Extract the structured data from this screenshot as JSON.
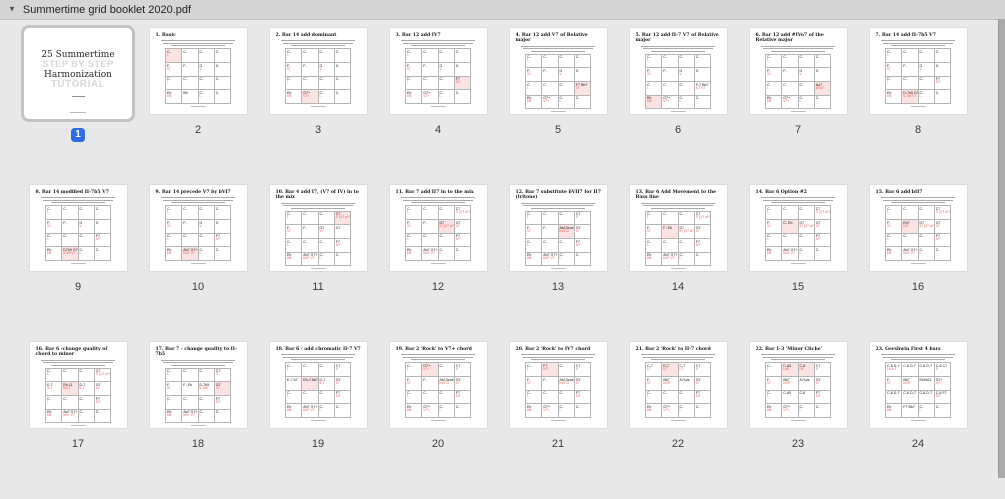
{
  "header": {
    "disclosure_icon": "▼",
    "filename": "Summertime grid booklet 2020.pdf"
  },
  "colors": {
    "selected_badge_blue": "#2f6ce6",
    "annotation_red": "#e2574e",
    "highlight_pink": "#fbe3e3",
    "page_white": "#ffffff",
    "canvas_gray": "#e8e8e8",
    "titlebar_gray": "#d5d5d5"
  },
  "cover": {
    "line1": "25 Summertime",
    "line2": "STEP BY STEP",
    "line3": "Harmonization",
    "line4": "TUTORIAL"
  },
  "base_grid": [
    [
      "C-",
      "I-"
    ],
    [
      "C-",
      ""
    ],
    [
      "C-",
      ""
    ],
    [
      "C-",
      ""
    ],
    [
      "F-",
      "IV-"
    ],
    [
      "F-",
      ""
    ],
    [
      "G",
      "V"
    ],
    [
      "G",
      ""
    ],
    [
      "C-",
      "I-"
    ],
    [
      "C-",
      ""
    ],
    [
      "C-",
      ""
    ],
    [
      "C-",
      ""
    ],
    [
      "Eb",
      "bIII"
    ],
    [
      "Bb",
      ""
    ],
    [
      "C-",
      "I-"
    ],
    [
      "C-",
      ""
    ]
  ],
  "pages": [
    {
      "num": "1",
      "selected": true,
      "type": "cover"
    },
    {
      "num": "2",
      "title": "1. Basic",
      "ov": {},
      "hl": [
        0
      ]
    },
    {
      "num": "3",
      "title": "2. Bar 14 add dominant",
      "ov": {
        "13": [
          "G7+",
          "V7+"
        ]
      },
      "hl": [
        13
      ]
    },
    {
      "num": "4",
      "title": "3. Bar 12 add IV7",
      "ov": {
        "11": [
          "F7",
          "IV7"
        ],
        "13": [
          "G7+",
          "V7+"
        ]
      },
      "hl": [
        11
      ]
    },
    {
      "num": "5",
      "title": "4. Bar 12 add V7 of Relative major",
      "ov": {
        "11": [
          "F7 Bb7",
          "V7"
        ],
        "13": [
          "G7+",
          "V7+"
        ]
      },
      "hl": [
        11
      ]
    },
    {
      "num": "6",
      "title": "5. Bar 12 add II-7 V7 of Relative major",
      "ov": {
        "11": [
          "F-7 Bb7",
          "II-7 V7"
        ],
        "13": [
          "G7+",
          "V7+"
        ]
      },
      "hl": [
        12
      ]
    },
    {
      "num": "7",
      "title": "6. Bar 12 add #IVo7 of the Relative major",
      "ov": {
        "11": [
          "Ao7",
          "#IVo7"
        ],
        "13": [
          "G7+",
          "V7+"
        ]
      },
      "hl": [
        11
      ]
    },
    {
      "num": "8",
      "title": "7. Bar 14 add II-7b5 V7",
      "ov": {
        "11": [
          "F7",
          "IV7"
        ],
        "13": [
          "D-7b5 G7+",
          "II-7b5 V7"
        ]
      },
      "hl": [
        13
      ]
    },
    {
      "num": "9",
      "title": "8. Bar 14 modified  II-7b5 V7",
      "ov": {
        "11": [
          "F7",
          "IV7"
        ],
        "13": [
          "D7b9 G7+",
          "II7b9 V7"
        ]
      },
      "hl": [
        13
      ]
    },
    {
      "num": "10",
      "title": "9. Bar 14 precede V7 by bVI7",
      "ov": {
        "11": [
          "F7",
          "IV7"
        ],
        "13": [
          "Ab7 G7+",
          "bVI7 V7"
        ]
      },
      "hl": [
        13
      ]
    },
    {
      "num": "11",
      "title": "10. Bar 4 add I7, (V7 of IV) in to the mix",
      "ov": {
        "3": [
          "C7",
          "I7 (V7 of IV)"
        ],
        "6": [
          "G7",
          "V7"
        ],
        "7": [
          "G7",
          ""
        ],
        "11": [
          "F7",
          "IV7"
        ],
        "13": [
          "Ab7 G7+",
          "bVI7 V7"
        ]
      },
      "hl": [
        3
      ]
    },
    {
      "num": "12",
      "title": "11. Bar 7 add II7 in to the mix",
      "ov": {
        "3": [
          "C7",
          "I7 (V7 of IV)"
        ],
        "6": [
          "D7",
          "II7 (V7 of V)"
        ],
        "7": [
          "G7",
          "V7"
        ],
        "11": [
          "F7",
          "IV7"
        ],
        "13": [
          "Ab7 G7+",
          "bVI7 V7"
        ]
      },
      "hl": [
        6
      ]
    },
    {
      "num": "13",
      "title": "12. Bar 7 substitute bVII7 for II7 (tritone)",
      "ov": {
        "3": [
          "C7",
          "I7"
        ],
        "6": [
          "Ab13sus",
          "bVII13"
        ],
        "7": [
          "G7",
          "V7"
        ],
        "11": [
          "F7",
          "IV7"
        ],
        "13": [
          "Ab7 G7+",
          "bVI7 V7"
        ]
      },
      "hl": [
        6
      ]
    },
    {
      "num": "14",
      "title": "13. Bar 6  Add Movement to the Bass line",
      "ov": {
        "3": [
          "C7",
          "I7 (V7 of IV)"
        ],
        "5": [
          "F- Eb",
          ""
        ],
        "6": [
          "D7",
          "II7 (V7 of V)"
        ],
        "7": [
          "G7",
          "V7"
        ],
        "11": [
          "F7",
          "IV7"
        ],
        "13": [
          "Ab7 G7+",
          "bVI7 V7"
        ]
      },
      "hl": [
        5
      ]
    },
    {
      "num": "15",
      "title": "14. Bar 6  Option #2",
      "ov": {
        "3": [
          "C7",
          "I7 (V7 of IV)"
        ],
        "5": [
          "C- Eb",
          ""
        ],
        "6": [
          "D7",
          "II7 (V7 of V)"
        ],
        "7": [
          "G7",
          "V7"
        ],
        "11": [
          "F7",
          "IV7"
        ],
        "13": [
          "Ab7 G7+",
          "bVI7 V7"
        ]
      },
      "hl": [
        5
      ]
    },
    {
      "num": "16",
      "title": "15. Bar 6  add bII7",
      "ov": {
        "3": [
          "C7",
          "I7 (V7 of IV)"
        ],
        "5": [
          "Eb7",
          "bII7"
        ],
        "6": [
          "D7",
          "II7 (V7 of V)"
        ],
        "7": [
          "G7",
          "V7"
        ],
        "11": [
          "F7",
          "IV7"
        ],
        "13": [
          "Ab7 G7+",
          "bVI7 V7"
        ]
      },
      "hl": [
        5
      ]
    },
    {
      "num": "17",
      "title": "16. Bar 6 -change quality of chord to minor",
      "ov": {
        "3": [
          "C7",
          "I7 (V7 of IV)"
        ],
        "4": [
          "E-7",
          "III-7"
        ],
        "5": [
          "Eb-11",
          "bIII-7"
        ],
        "6": [
          "D-7",
          "II-7"
        ],
        "7": [
          "G7",
          "V7"
        ],
        "11": [
          "F7",
          "IV7"
        ],
        "13": [
          "Ab7 G7+",
          "bVI7 V7"
        ]
      },
      "hl": [
        5
      ]
    },
    {
      "num": "18",
      "title": "17. Bar 7 - change quality to II-7b5",
      "ov": {
        "3": [
          "C7",
          "I7"
        ],
        "5": [
          "F- Eb",
          ""
        ],
        "6": [
          "D-7b5",
          "II-7b5"
        ],
        "7": [
          "G7",
          "V7"
        ],
        "11": [
          "F7",
          "IV7"
        ],
        "13": [
          "Ab7 G7+",
          "bVI7 V7"
        ]
      },
      "hl": [
        7
      ]
    },
    {
      "num": "19",
      "title": "18. Bar 6 - add chromatic II-7 V7",
      "ov": {
        "3": [
          "C7",
          "I7"
        ],
        "4": [
          "E-7 A7",
          ""
        ],
        "5": [
          "Eb-7 Ab7",
          ""
        ],
        "6": [
          "D-7",
          "II-7"
        ],
        "7": [
          "G7",
          "V7"
        ],
        "11": [
          "F7",
          "IV7"
        ],
        "13": [
          "Ab7 G7+",
          "bVI7 V7"
        ]
      },
      "hl": [
        5
      ]
    },
    {
      "num": "20",
      "title": "19. Bar 2 'Rock' to V7+ chord",
      "ov": {
        "1": [
          "G7+",
          "V7+"
        ],
        "3": [
          "C7",
          "I7"
        ],
        "6": [
          "Ab13sus",
          "bVII13"
        ],
        "7": [
          "G7",
          "V7"
        ],
        "11": [
          "F7",
          "IV7"
        ],
        "13": [
          "G7+",
          "V7+"
        ]
      },
      "hl": [
        1
      ]
    },
    {
      "num": "21",
      "title": "20. Bar 2 'Rock' to IV7 chord",
      "ov": {
        "1": [
          "F7",
          "IV7"
        ],
        "3": [
          "C7",
          "I7"
        ],
        "6": [
          "Ab13sus",
          "bVII13"
        ],
        "7": [
          "G7",
          "V7"
        ],
        "11": [
          "F7",
          "IV7"
        ],
        "13": [
          "G7+",
          "V7+"
        ]
      },
      "hl": [
        1
      ]
    },
    {
      "num": "22",
      "title": "21. Bar 2 'Rock' to II-7 chord",
      "ov": {
        "0": [
          "C-7",
          "I-7"
        ],
        "1": [
          "D-7",
          "II-7"
        ],
        "2": [
          "C-7",
          "I-7"
        ],
        "3": [
          "C7",
          "I7"
        ],
        "5": [
          "Bb7",
          "bVII7"
        ],
        "6": [
          "A7sus",
          ""
        ],
        "7": [
          "G7",
          "V7"
        ],
        "11": [
          "F7",
          "IV7"
        ],
        "13": [
          "G7+",
          "V7+"
        ]
      },
      "hl": [
        1
      ]
    },
    {
      "num": "23",
      "title": "22. Bar 1-3 'Minor Cliche'",
      "ov": {
        "1": [
          "C-#5",
          "I-#5"
        ],
        "2": [
          "C-6",
          "I-6"
        ],
        "3": [
          "C7",
          "I7"
        ],
        "5": [
          "Bb7",
          "bVII7"
        ],
        "6": [
          "A7sus",
          ""
        ],
        "7": [
          "G7",
          "V7"
        ],
        "9": [
          "C-#5",
          ""
        ],
        "10": [
          "C-6",
          ""
        ],
        "11": [
          "F7",
          "IV7"
        ],
        "13": [
          "G7+",
          "V7+"
        ]
      },
      "hl": [
        1,
        2
      ]
    },
    {
      "num": "24",
      "title": "23. Gershwin First 4 bars",
      "ov": {
        "0": [
          "C-6 D-7",
          "I-6 II-7"
        ],
        "1": [
          "C-6 D-7",
          ""
        ],
        "2": [
          "C-6 D-7",
          ""
        ],
        "3": [
          "C-6 C7",
          "I7"
        ],
        "5": [
          "Bb7",
          "bVII7"
        ],
        "6": [
          "Eb9#11",
          ""
        ],
        "7": [
          "G7+",
          "V7+"
        ],
        "8": [
          "C-6 D-7",
          ""
        ],
        "9": [
          "C-6 D-7",
          ""
        ],
        "10": [
          "C-6 D-7",
          ""
        ],
        "11": [
          "C-6 F7",
          "IV7"
        ],
        "13": [
          "F7 Bb7",
          ""
        ]
      },
      "hl": []
    }
  ]
}
